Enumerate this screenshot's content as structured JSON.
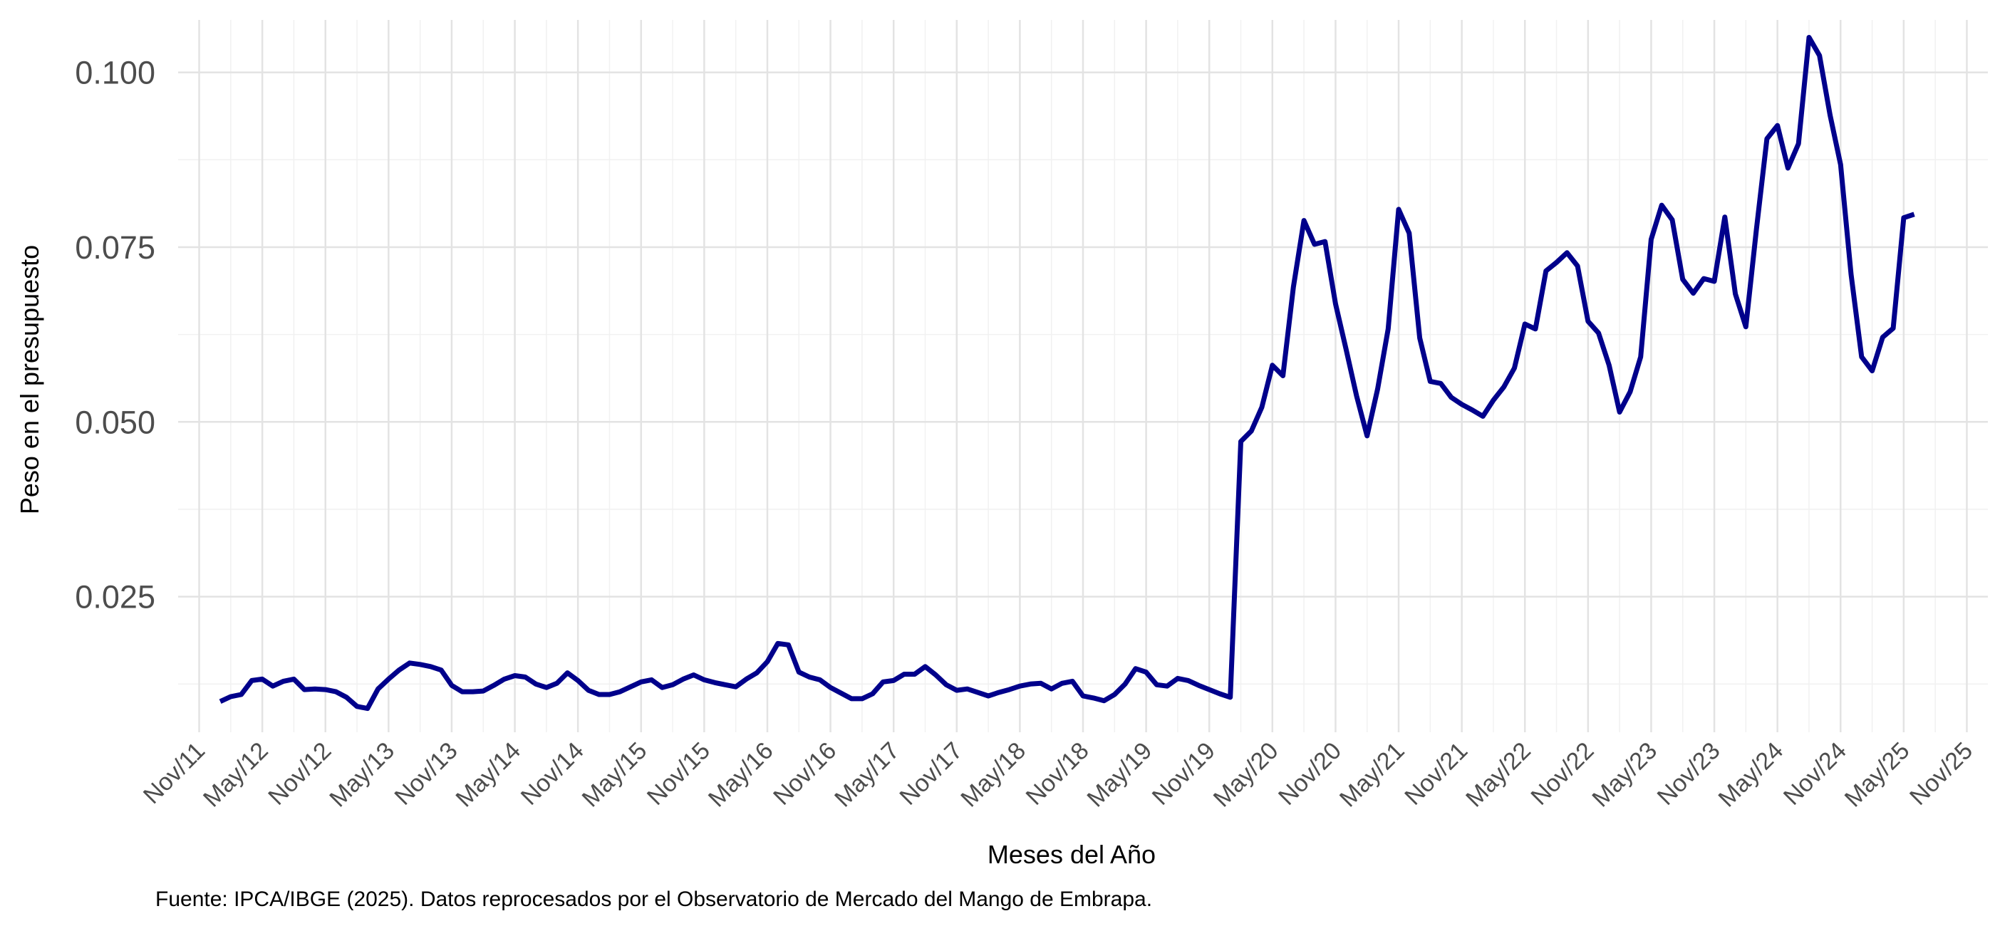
{
  "chart_data": {
    "type": "line",
    "title": "",
    "xlabel": "Meses del Año",
    "ylabel": "Peso en el presupuesto",
    "caption": "Fuente: IPCA/IBGE (2025). Datos reprocesados por el Observatorio de Mercado del Mango de Embrapa.",
    "y_ticks": [
      0.025,
      0.05,
      0.075,
      0.1
    ],
    "y_tick_labels": [
      "0.025",
      "0.050",
      "0.075",
      "0.100"
    ],
    "ylim": [
      0.0056,
      0.1075
    ],
    "x_ticks": [
      "2011-11",
      "2012-05",
      "2012-11",
      "2013-05",
      "2013-11",
      "2014-05",
      "2014-11",
      "2015-05",
      "2015-11",
      "2016-05",
      "2016-11",
      "2017-05",
      "2017-11",
      "2018-05",
      "2018-11",
      "2019-05",
      "2019-11",
      "2020-05",
      "2020-11",
      "2021-05",
      "2021-11",
      "2022-05",
      "2022-11",
      "2023-05",
      "2023-11",
      "2024-05",
      "2024-11",
      "2025-05",
      "2025-11"
    ],
    "x_tick_labels": [
      "Nov/11",
      "May/12",
      "Nov/12",
      "May/13",
      "Nov/13",
      "May/14",
      "Nov/14",
      "May/15",
      "Nov/15",
      "May/16",
      "Nov/16",
      "May/17",
      "Nov/17",
      "May/18",
      "Nov/18",
      "May/19",
      "Nov/19",
      "May/20",
      "Nov/20",
      "May/21",
      "Nov/21",
      "May/22",
      "Nov/22",
      "May/23",
      "Nov/23",
      "May/24",
      "Nov/24",
      "May/25",
      "Nov/25"
    ],
    "xlim": [
      "2011-09",
      "2026-01"
    ],
    "grid": true,
    "line_color": "#00008B",
    "series": [
      {
        "start": "2012-01",
        "frequency": "monthly",
        "values": [
          0.01,
          0.0107,
          0.011,
          0.013,
          0.0132,
          0.0122,
          0.0129,
          0.0132,
          0.0117,
          0.0118,
          0.0117,
          0.0114,
          0.0106,
          0.0093,
          0.009,
          0.0118,
          0.0132,
          0.0145,
          0.0155,
          0.0153,
          0.015,
          0.0145,
          0.0123,
          0.0114,
          0.0114,
          0.0115,
          0.0123,
          0.0132,
          0.0137,
          0.0135,
          0.0125,
          0.012,
          0.0126,
          0.0141,
          0.013,
          0.0116,
          0.011,
          0.011,
          0.0114,
          0.0121,
          0.0128,
          0.0131,
          0.012,
          0.0124,
          0.0132,
          0.0138,
          0.0131,
          0.0127,
          0.0124,
          0.0121,
          0.0132,
          0.0141,
          0.0157,
          0.0183,
          0.0181,
          0.0142,
          0.0135,
          0.0131,
          0.012,
          0.0112,
          0.0104,
          0.0104,
          0.0111,
          0.0128,
          0.013,
          0.0139,
          0.0139,
          0.015,
          0.0138,
          0.0124,
          0.0116,
          0.0118,
          0.0113,
          0.0108,
          0.0113,
          0.0117,
          0.0122,
          0.0125,
          0.0126,
          0.0118,
          0.0126,
          0.0129,
          0.0108,
          0.0105,
          0.0101,
          0.011,
          0.0125,
          0.0147,
          0.0142,
          0.0124,
          0.0122,
          0.0133,
          0.013,
          0.0123,
          0.0117,
          0.0111,
          0.0106,
          0.0472,
          0.0487,
          0.0521,
          0.0581,
          0.0566,
          0.0693,
          0.0788,
          0.0754,
          0.0758,
          0.0669,
          0.0604,
          0.0537,
          0.048,
          0.0547,
          0.0633,
          0.0804,
          0.077,
          0.062,
          0.0558,
          0.0555,
          0.0535,
          0.0525,
          0.0517,
          0.0508,
          0.0531,
          0.055,
          0.0577,
          0.064,
          0.0633,
          0.0716,
          0.0728,
          0.0742,
          0.0723,
          0.0644,
          0.0627,
          0.0581,
          0.0514,
          0.0543,
          0.0593,
          0.0761,
          0.081,
          0.0789,
          0.0704,
          0.0684,
          0.0705,
          0.0701,
          0.0793,
          0.0683,
          0.0636,
          0.0775,
          0.0905,
          0.0924,
          0.0863,
          0.0898,
          0.105,
          0.1024,
          0.0939,
          0.0868,
          0.0711,
          0.0593,
          0.0573,
          0.0621,
          0.0634,
          0.0792,
          0.0797
        ]
      }
    ]
  }
}
